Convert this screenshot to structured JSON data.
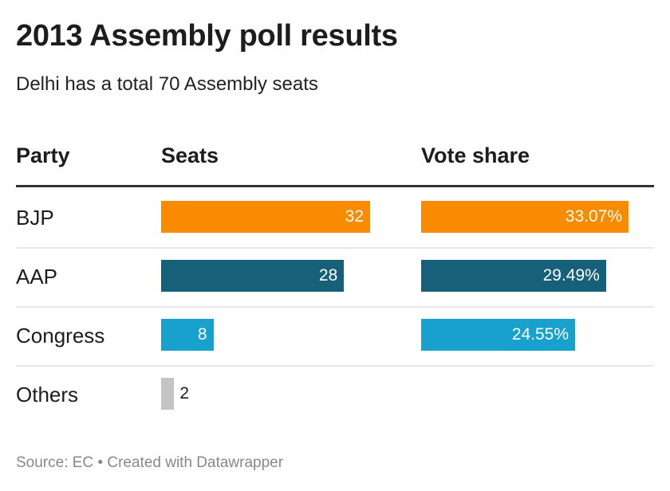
{
  "title": "2013 Assembly poll results",
  "subtitle": "Delhi has a total 70 Assembly seats",
  "footer": "Source: EC • Created with Datawrapper",
  "chart_data": {
    "type": "table",
    "columns": [
      "Party",
      "Seats",
      "Vote share"
    ],
    "rows": [
      {
        "party": "BJP",
        "seats": 32,
        "seats_label": "32",
        "vote": 33.07,
        "vote_label": "33.07%",
        "color": "#f98b00"
      },
      {
        "party": "AAP",
        "seats": 28,
        "seats_label": "28",
        "vote": 29.49,
        "vote_label": "29.49%",
        "color": "#16607a"
      },
      {
        "party": "Congress",
        "seats": 8,
        "seats_label": "8",
        "vote": 24.55,
        "vote_label": "24.55%",
        "color": "#18a1cd"
      },
      {
        "party": "Others",
        "seats": 2,
        "seats_label": "2",
        "vote": null,
        "vote_label": null,
        "color": "#c4c4c4"
      }
    ],
    "seats_max": 32,
    "vote_max": 33.07
  }
}
